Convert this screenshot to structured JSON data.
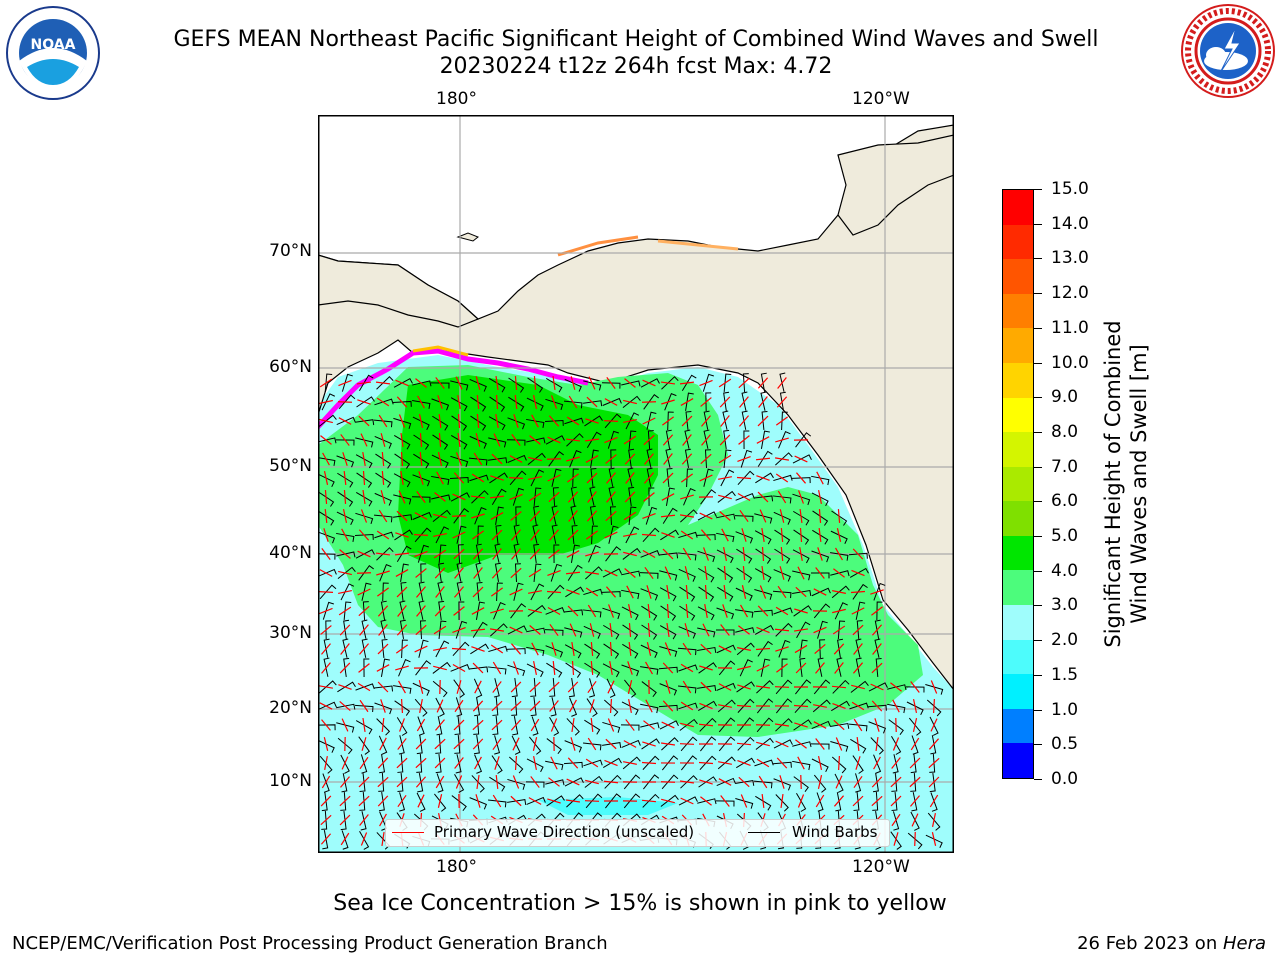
{
  "title": {
    "line1": "GEFS MEAN Northeast Pacific Significant Height of Combined Wind Waves and Swell",
    "line2": "20230224 t12z 264h fcst   Max: 4.72"
  },
  "logos": {
    "left": {
      "icon": "noaa-logo",
      "text": "NOAA"
    },
    "right": {
      "icon": "national-weather-service-logo",
      "text": "NATIONAL WEATHER SERVICE"
    }
  },
  "map": {
    "lon_labels_top": [
      "180°",
      "120°W"
    ],
    "lon_labels_bottom": [
      "180°",
      "120°W"
    ],
    "lat_labels": [
      "70°N",
      "60°N",
      "50°N",
      "40°N",
      "30°N",
      "20°N",
      "10°N"
    ],
    "land_color": "#efebdc",
    "ocean_color": "#9ffdfc"
  },
  "legend": {
    "wave_direction": "Primary Wave Direction (unscaled)",
    "wind_barbs": "Wind Barbs",
    "wave_color": "#ff0000",
    "barb_color": "#000000"
  },
  "colorbar": {
    "title_line1": "Significant Height of Combined",
    "title_line2": "Wind Waves and Swell [m]",
    "ticks": [
      "15.0",
      "14.0",
      "13.0",
      "12.0",
      "11.0",
      "10.0",
      "9.0",
      "8.0",
      "7.0",
      "6.0",
      "5.0",
      "4.0",
      "3.0",
      "2.0",
      "1.5",
      "1.0",
      "0.5",
      "0.0"
    ],
    "colors_top_to_bottom": [
      "#ff0000",
      "#ff2a00",
      "#ff5500",
      "#ff7f00",
      "#ffaa00",
      "#ffd400",
      "#ffff00",
      "#d4f500",
      "#aaea00",
      "#7fe000",
      "#00e600",
      "#4cfc7c",
      "#9ffdfc",
      "#4dfcfc",
      "#00f0ff",
      "#007fff",
      "#0000ff"
    ]
  },
  "caption": "Sea Ice Concentration > 15% is shown in pink to yellow",
  "footer": {
    "left": "NCEP/EMC/Verification Post Processing Product Generation Branch",
    "right_date": "26 Feb 2023 on ",
    "right_host": "Hera"
  }
}
